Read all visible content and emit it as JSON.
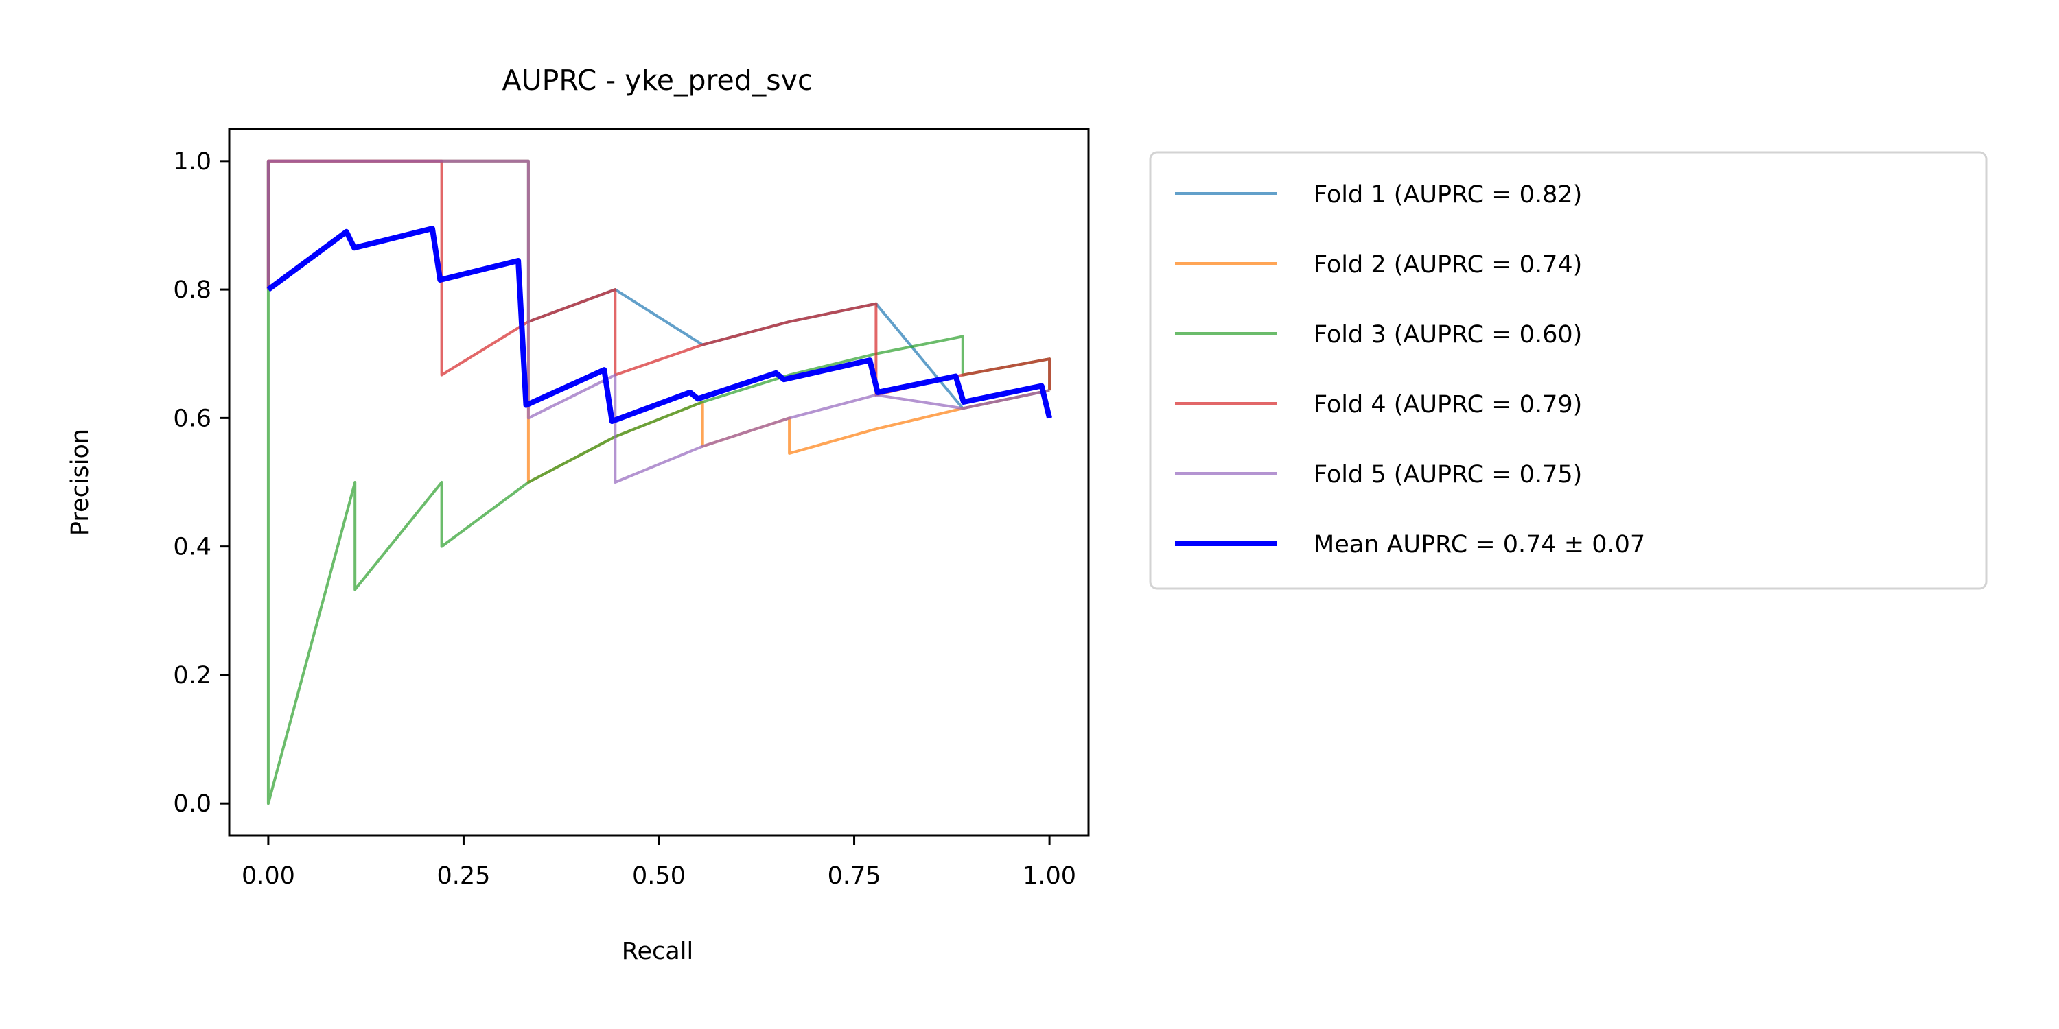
{
  "chart_data": {
    "type": "line",
    "title": "AUPRC - yke_pred_svc",
    "xlabel": "Recall",
    "ylabel": "Precision",
    "xlim": [
      -0.05,
      1.05
    ],
    "ylim": [
      -0.05,
      1.05
    ],
    "xticks": [
      "0.00",
      "0.25",
      "0.50",
      "0.75",
      "1.00"
    ],
    "yticks": [
      "0.0",
      "0.2",
      "0.4",
      "0.6",
      "0.8",
      "1.0"
    ],
    "grid": false,
    "legend_position": "outside-right",
    "series": [
      {
        "name": "Fold 1 (AUPRC = 0.82)",
        "color": "#1f77b4",
        "x": [
          0.0,
          0.0,
          0.111,
          0.222,
          0.333,
          0.333,
          0.444,
          0.556,
          0.667,
          0.778,
          0.889,
          1.0
        ],
        "y": [
          0.8,
          1.0,
          1.0,
          1.0,
          1.0,
          0.75,
          0.8,
          0.714,
          0.75,
          0.778,
          0.615,
          0.643
        ]
      },
      {
        "name": "Fold 2 (AUPRC = 0.74)",
        "color": "#ff7f0e",
        "x": [
          0.0,
          0.0,
          0.111,
          0.222,
          0.333,
          0.333,
          0.444,
          0.556,
          0.556,
          0.667,
          0.667,
          0.778,
          0.889,
          1.0
        ],
        "y": [
          0.8,
          1.0,
          1.0,
          1.0,
          1.0,
          0.5,
          0.571,
          0.625,
          0.556,
          0.6,
          0.545,
          0.583,
          0.615,
          0.643
        ]
      },
      {
        "name": "Fold 3 (AUPRC = 0.60)",
        "color": "#2ca02c",
        "x": [
          0.0,
          0.0,
          0.111,
          0.111,
          0.222,
          0.222,
          0.333,
          0.444,
          0.556,
          0.667,
          0.778,
          0.889,
          0.889,
          1.0,
          1.0
        ],
        "y": [
          1.0,
          0.0,
          0.5,
          0.333,
          0.5,
          0.4,
          0.5,
          0.571,
          0.625,
          0.667,
          0.7,
          0.727,
          0.667,
          0.692,
          0.643
        ]
      },
      {
        "name": "Fold 4 (AUPRC = 0.79)",
        "color": "#d62728",
        "x": [
          0.0,
          0.0,
          0.111,
          0.222,
          0.222,
          0.333,
          0.444,
          0.444,
          0.556,
          0.667,
          0.778,
          0.778,
          0.889,
          1.0,
          1.0
        ],
        "y": [
          0.8,
          1.0,
          1.0,
          1.0,
          0.667,
          0.75,
          0.8,
          0.667,
          0.714,
          0.75,
          0.778,
          0.636,
          0.667,
          0.692,
          0.643
        ]
      },
      {
        "name": "Fold 5 (AUPRC = 0.75)",
        "color": "#9467bd",
        "x": [
          0.0,
          0.0,
          0.111,
          0.222,
          0.333,
          0.333,
          0.444,
          0.444,
          0.556,
          0.667,
          0.778,
          0.889,
          1.0
        ],
        "y": [
          0.8,
          1.0,
          1.0,
          1.0,
          1.0,
          0.6,
          0.667,
          0.5,
          0.556,
          0.6,
          0.636,
          0.615,
          0.643
        ]
      },
      {
        "name": "Mean AUPRC = 0.74 ± 0.07",
        "color": "#0000ff",
        "x": [
          0.0,
          0.1,
          0.11,
          0.21,
          0.22,
          0.32,
          0.33,
          0.43,
          0.44,
          0.54,
          0.55,
          0.65,
          0.66,
          0.77,
          0.78,
          0.88,
          0.89,
          0.99,
          1.0
        ],
        "y": [
          0.8,
          0.89,
          0.865,
          0.895,
          0.815,
          0.845,
          0.62,
          0.675,
          0.595,
          0.64,
          0.63,
          0.67,
          0.66,
          0.69,
          0.64,
          0.665,
          0.625,
          0.65,
          0.6
        ]
      }
    ]
  }
}
